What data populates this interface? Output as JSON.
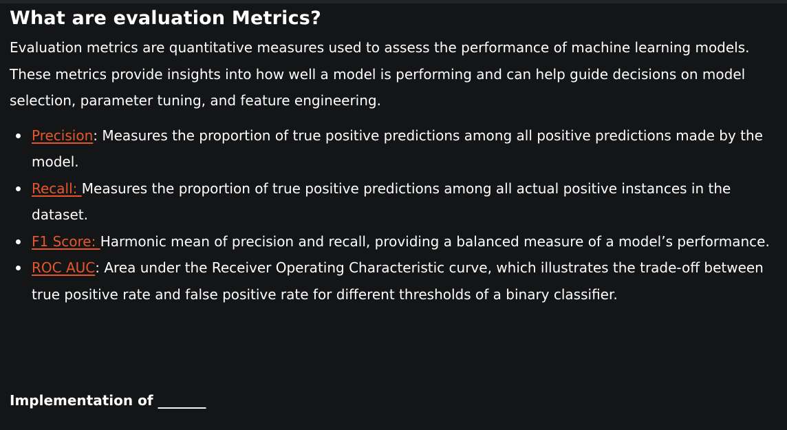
{
  "heading": "What are evaluation Metrics?",
  "intro": "Evaluation metrics are quantitative measures used to assess the performance of machine learning models. These metrics provide insights into how well a model is performing and can help guide decisions on model selection, parameter tuning, and feature engineering.",
  "metrics": [
    {
      "term": "Precision",
      "description": ": Measures the proportion of true positive predictions among all positive predictions made by the model."
    },
    {
      "term": "Recall: ",
      "description": "Measures the proportion of true positive predictions among all actual positive instances in the dataset."
    },
    {
      "term": "F1 Score: ",
      "description": "Harmonic mean of precision and recall, providing a balanced measure of a model’s performance."
    },
    {
      "term": "ROC AUC",
      "description": ": Area under the Receiver Operating Characteristic curve, which illustrates the trade-off between true positive rate and false positive rate for different thresholds of a binary classifier."
    }
  ],
  "implementation_heading": "Implementation of _______",
  "colors": {
    "background": "#141517",
    "text": "#ffffff",
    "link": "#e8572a"
  }
}
